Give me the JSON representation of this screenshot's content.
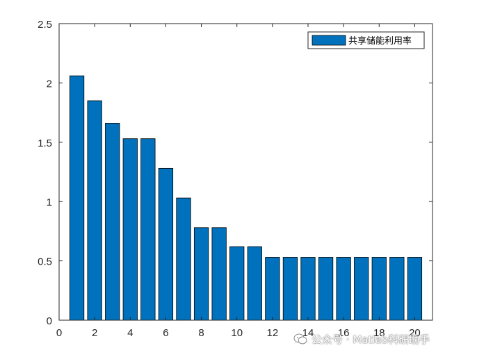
{
  "chart_data": {
    "type": "bar",
    "x": [
      1,
      2,
      3,
      4,
      5,
      6,
      7,
      8,
      9,
      10,
      11,
      12,
      13,
      14,
      15,
      16,
      17,
      18,
      19,
      20
    ],
    "values": [
      2.06,
      1.85,
      1.66,
      1.53,
      1.53,
      1.28,
      1.03,
      0.78,
      0.78,
      0.62,
      0.62,
      0.53,
      0.53,
      0.53,
      0.53,
      0.53,
      0.53,
      0.53,
      0.53,
      0.53
    ],
    "series_name": "共享储能利用率",
    "xlim": [
      0,
      21
    ],
    "ylim": [
      0,
      2.5
    ],
    "xticks": [
      "0",
      "2",
      "4",
      "6",
      "8",
      "10",
      "12",
      "14",
      "16",
      "18",
      "20"
    ],
    "yticks": [
      "0",
      "0.5",
      "1",
      "1.5",
      "2",
      "2.5"
    ],
    "bar_color": "#0072BD",
    "grid": false,
    "legend_position": "top-right"
  },
  "watermark": {
    "text": "公众号 · Matlab科研助手",
    "icon": "wechat-icon"
  }
}
